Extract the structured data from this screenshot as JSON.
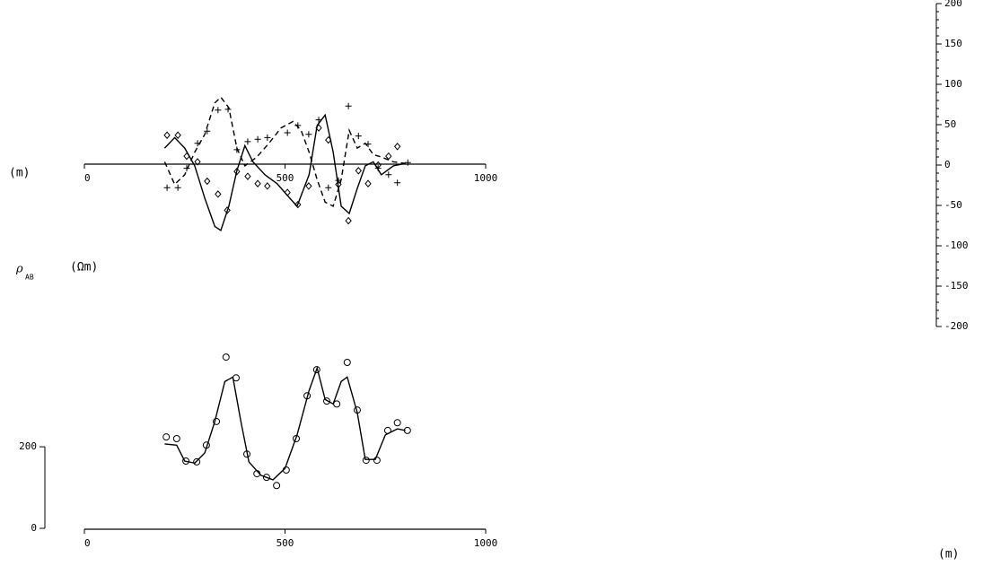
{
  "unit_label_top": "(m)",
  "rho_label": "ρ",
  "rho_sub": "AB",
  "ohm_label": "(Ωm)",
  "unit_label_bottom": "(m)",
  "chart_data": [
    {
      "type": "line",
      "y_axis_side": "right",
      "xlim": [
        0,
        1000
      ],
      "xticks": [
        0,
        500,
        1000
      ],
      "ylim": [
        -200,
        200
      ],
      "yticks": [
        -200,
        -150,
        -100,
        -50,
        0,
        50,
        100,
        150,
        200
      ],
      "series": [
        {
          "style": "solid",
          "color": "#000",
          "x": [
            200,
            225,
            250,
            275,
            300,
            325,
            340,
            360,
            380,
            400,
            420,
            450,
            480,
            510,
            530,
            560,
            580,
            600,
            620,
            640,
            660,
            680,
            700,
            720,
            740,
            770,
            800
          ],
          "values": [
            21,
            34,
            21,
            -1,
            -41,
            -76,
            -81,
            -51,
            -7,
            24,
            4,
            -12,
            -23,
            -40,
            -51,
            -12,
            49,
            62,
            16,
            -51,
            -60,
            -29,
            -1,
            4,
            -12,
            -1,
            2
          ]
        },
        {
          "style": "dashed",
          "color": "#000",
          "x": [
            200,
            225,
            250,
            275,
            300,
            325,
            340,
            360,
            380,
            400,
            430,
            460,
            490,
            520,
            540,
            560,
            580,
            600,
            620,
            640,
            660,
            680,
            700,
            720,
            740,
            770,
            800
          ],
          "values": [
            4,
            -24,
            -12,
            16,
            38,
            77,
            84,
            71,
            21,
            -1,
            10,
            27,
            46,
            54,
            43,
            16,
            -18,
            -46,
            -51,
            -18,
            43,
            21,
            27,
            13,
            10,
            4,
            2
          ]
        },
        {
          "style": "diamond",
          "color": "#000",
          "x": [
            206,
            233,
            255,
            282,
            306,
            333,
            356,
            380,
            407,
            432,
            456,
            506,
            532,
            559,
            584,
            608,
            633,
            658,
            683,
            707,
            732,
            758,
            780
          ],
          "values": [
            37,
            37,
            11,
            4,
            -20,
            -36,
            -56,
            -8,
            -14,
            -23,
            -26,
            -34,
            -49,
            -26,
            46,
            31,
            -24,
            -69,
            -7,
            -23,
            0,
            11,
            23
          ]
        },
        {
          "style": "plus",
          "color": "#000",
          "x": [
            206,
            233,
            255,
            282,
            306,
            333,
            358,
            380,
            407,
            432,
            456,
            506,
            532,
            559,
            584,
            608,
            633,
            658,
            683,
            707,
            732,
            758,
            780,
            806
          ],
          "values": [
            -28,
            -28,
            -4,
            27,
            42,
            68,
            69,
            19,
            29,
            32,
            34,
            40,
            49,
            38,
            56,
            -28,
            -19,
            73,
            36,
            26,
            -4,
            -12,
            -22,
            3
          ]
        }
      ]
    },
    {
      "type": "line",
      "y_axis_side": "left",
      "xlim": [
        0,
        1000
      ],
      "xticks": [
        0,
        500,
        1000
      ],
      "ylim": [
        0,
        440
      ],
      "yticks": [
        0,
        200
      ],
      "series": [
        {
          "style": "solid",
          "color": "#000",
          "x": [
            200,
            230,
            250,
            275,
            300,
            325,
            350,
            370,
            390,
            410,
            440,
            470,
            500,
            530,
            560,
            580,
            600,
            620,
            640,
            655,
            680,
            700,
            725,
            750,
            780,
            800
          ],
          "values": [
            207,
            204,
            165,
            160,
            185,
            262,
            360,
            371,
            262,
            163,
            130,
            119,
            147,
            229,
            338,
            393,
            316,
            305,
            360,
            371,
            284,
            169,
            169,
            229,
            244,
            240
          ]
        },
        {
          "style": "circle",
          "color": "#000",
          "x": [
            204,
            230,
            253,
            280,
            304,
            329,
            353,
            378,
            405,
            430,
            454,
            479,
            503,
            528,
            555,
            579,
            604,
            629,
            655,
            680,
            702,
            729,
            756,
            780,
            805
          ],
          "values": [
            224,
            220,
            165,
            163,
            204,
            262,
            420,
            369,
            182,
            134,
            125,
            105,
            143,
            220,
            325,
            389,
            312,
            305,
            407,
            290,
            167,
            167,
            240,
            259,
            240
          ]
        }
      ]
    }
  ]
}
